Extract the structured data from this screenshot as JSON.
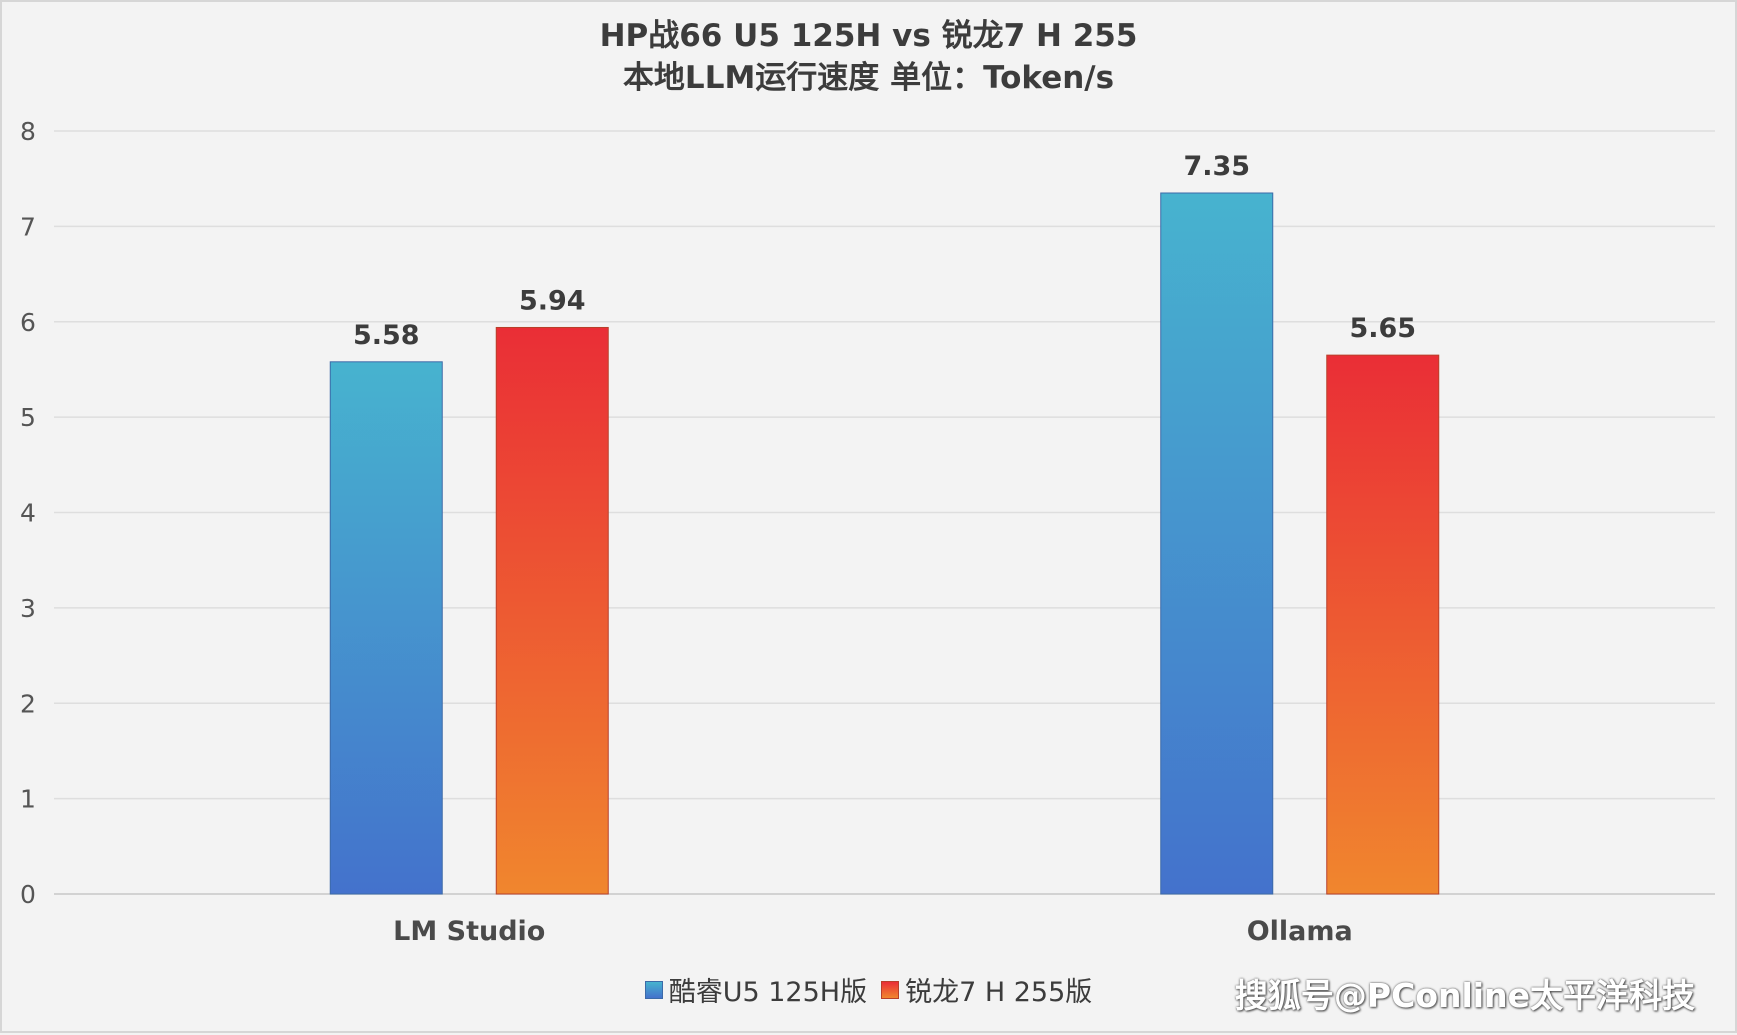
{
  "chart_data": {
    "type": "bar",
    "title": "HP战66 U5 125H vs 锐龙7 H 255",
    "subtitle": "本地LLM运行速度 单位：Token/s",
    "categories": [
      "LM Studio",
      "Ollama"
    ],
    "series": [
      {
        "name": "酷睿U5 125H版",
        "values": [
          5.58,
          7.35
        ],
        "color_top": "#47b3cf",
        "color_bottom": "#4472cc"
      },
      {
        "name": "锐龙7 H 255版",
        "values": [
          5.94,
          5.65
        ],
        "color_top": "#ea2e36",
        "color_bottom": "#f0862e"
      }
    ],
    "data_labels": [
      [
        "5.58",
        "7.35"
      ],
      [
        "5.94",
        "5.65"
      ]
    ],
    "ylim": [
      0,
      8
    ],
    "yticks": [
      0,
      1,
      2,
      3,
      4,
      5,
      6,
      7,
      8
    ],
    "grid": true,
    "legend": "bottom"
  },
  "watermark": "搜狐号@PConline太平洋科技"
}
